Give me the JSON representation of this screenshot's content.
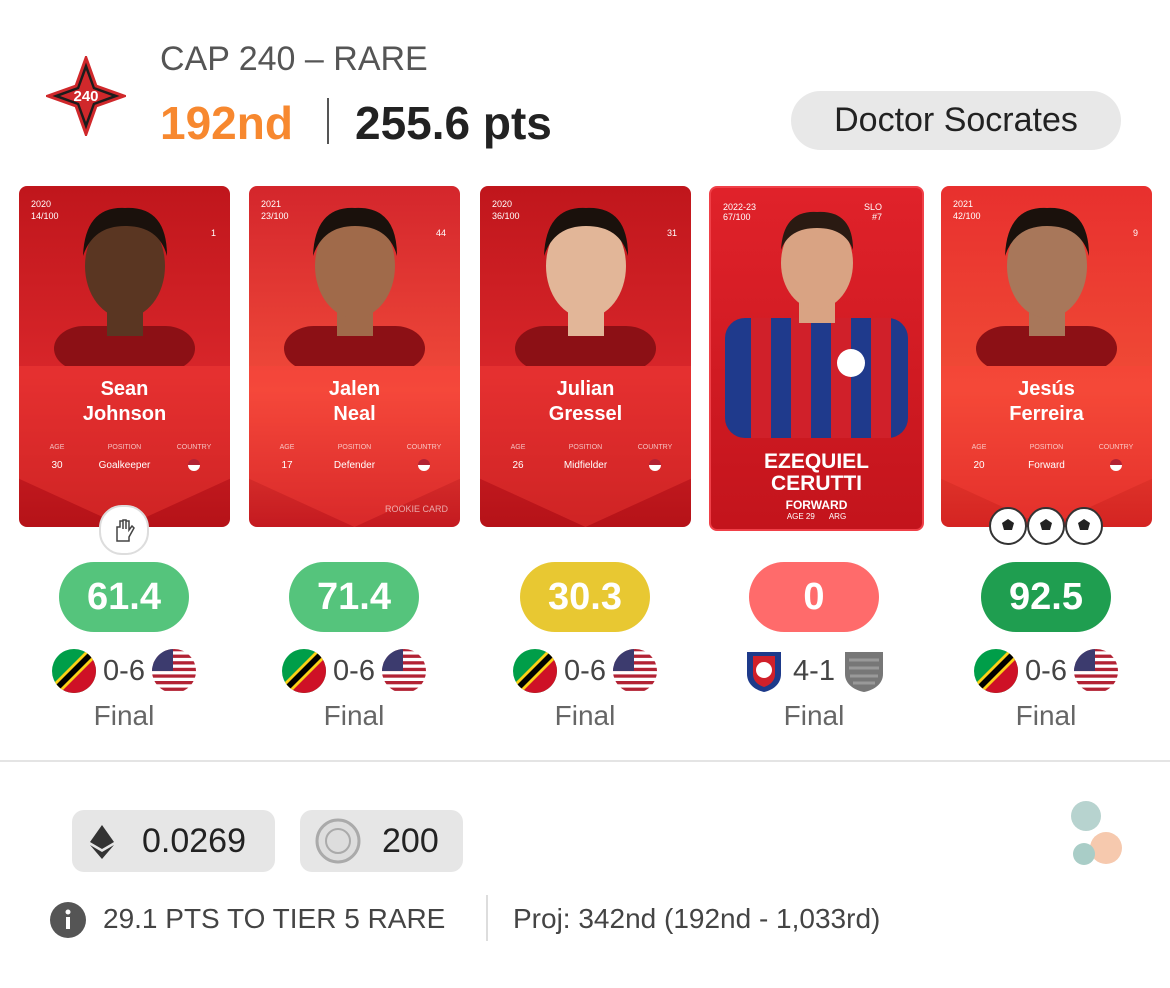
{
  "header": {
    "badge": "240",
    "title": "CAP 240 – RARE",
    "rank": "192nd",
    "points": "255.6 pts",
    "manager": "Doctor Socrates"
  },
  "cards": [
    {
      "season": "2020",
      "serial": "14/100",
      "number": "1",
      "first_name": "Sean",
      "last_name": "Johnson",
      "age_label": "AGE",
      "age": "30",
      "position_label": "POSITION",
      "position": "Goalkeeper",
      "country_label": "COUNTRY",
      "bonus_icon": "glove",
      "score": "61.4",
      "score_color": "#55c47c",
      "home_flag": "kna",
      "match_score": "0-6",
      "away_flag": "usa",
      "status": "Final"
    },
    {
      "season": "2021",
      "serial": "23/100",
      "number": "44",
      "first_name": "Jalen",
      "last_name": "Neal",
      "age_label": "AGE",
      "age": "17",
      "position_label": "POSITION",
      "position": "Defender",
      "country_label": "COUNTRY",
      "rookie": "ROOKIE CARD",
      "score": "71.4",
      "score_color": "#55c47c",
      "home_flag": "kna",
      "match_score": "0-6",
      "away_flag": "usa",
      "status": "Final"
    },
    {
      "season": "2020",
      "serial": "36/100",
      "number": "31",
      "first_name": "Julian",
      "last_name": "Gressel",
      "age_label": "AGE",
      "age": "26",
      "position_label": "POSITION",
      "position": "Midfielder",
      "country_label": "COUNTRY",
      "score": "30.3",
      "score_color": "#e8c832",
      "home_flag": "kna",
      "match_score": "0-6",
      "away_flag": "usa",
      "status": "Final"
    },
    {
      "season": "2022-23",
      "serial": "67/100",
      "league": "SLO",
      "number": "#7",
      "first_name": "EZEQUIEL",
      "last_name": "CERUTTI",
      "position": "FORWARD",
      "age_line": "AGE 29",
      "country": "ARG",
      "score": "0",
      "score_color": "#ff6b6b",
      "home_flag": "slo",
      "match_score": "4-1",
      "away_flag": "gray",
      "status": "Final"
    },
    {
      "season": "2021",
      "serial": "42/100",
      "number": "9",
      "first_name": "Jesús",
      "last_name": "Ferreira",
      "age_label": "AGE",
      "age": "20",
      "position_label": "POSITION",
      "position": "Forward",
      "country_label": "COUNTRY",
      "goals": 3,
      "score": "92.5",
      "score_color": "#1f9e50",
      "home_flag": "kna",
      "match_score": "0-6",
      "away_flag": "usa",
      "status": "Final"
    }
  ],
  "footer": {
    "eth": "0.0269",
    "coins": "200",
    "tier_note": "29.1 PTS TO TIER 5 RARE",
    "projection": "Proj: 342nd (192nd - 1,033rd)"
  }
}
